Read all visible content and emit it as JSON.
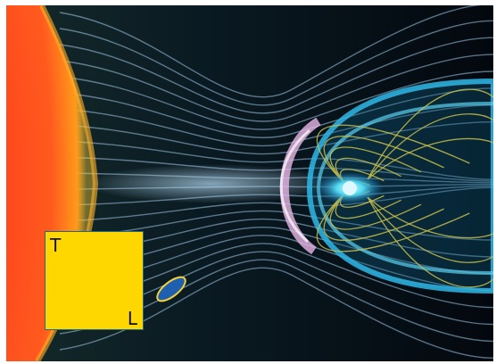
{
  "scene": {
    "description_tag": "sun-earth-magnetosphere-illustration",
    "colors": {
      "sun_core": "#ff3b1f",
      "sun_edge": "#ff9a1a",
      "solar_wind": "#9fc6e6",
      "magnetosphere": "#2fb8e8",
      "field_lines": "#c9c04a",
      "bow_shock": "#e8b6e6",
      "overlay_box": "#ffd700",
      "ellipse_marker": "#1e5fb0"
    }
  },
  "overlay": {
    "label_top_left": "T",
    "label_bottom_right": "L"
  }
}
